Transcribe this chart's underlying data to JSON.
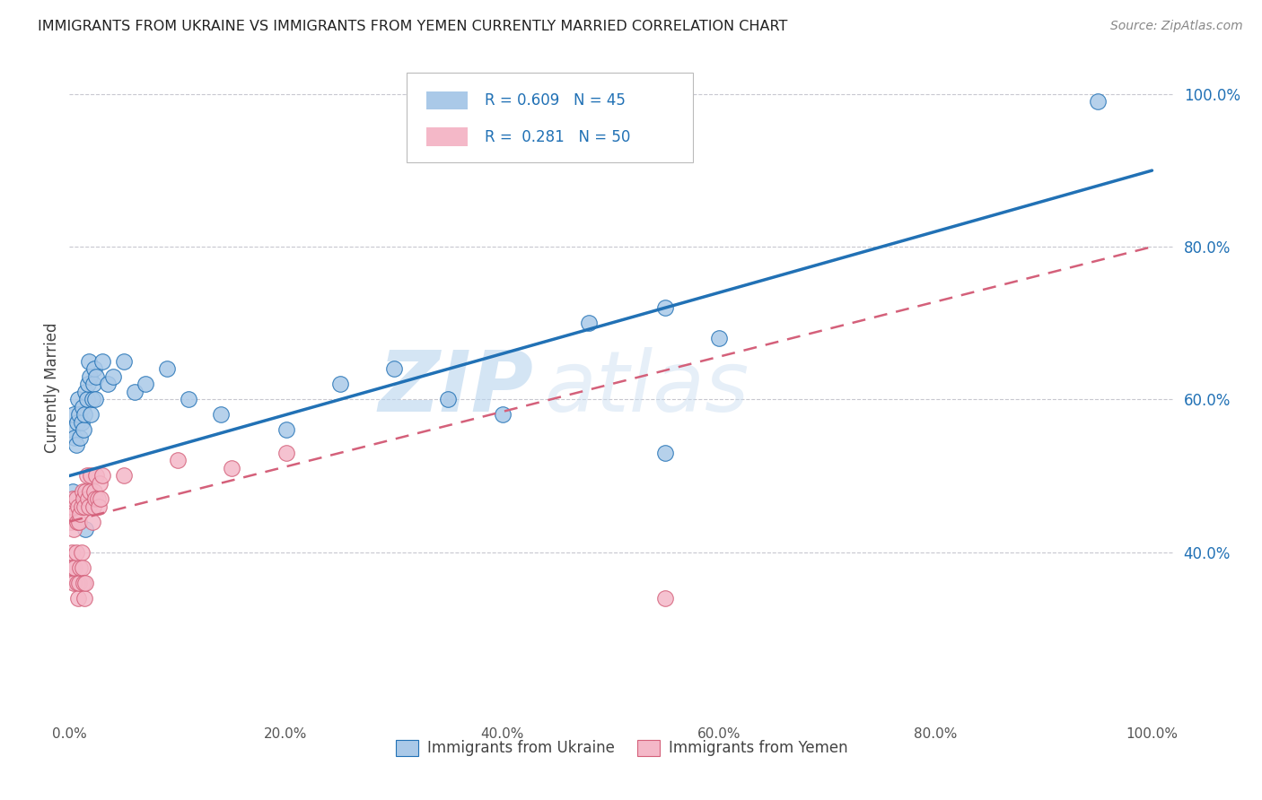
{
  "title": "IMMIGRANTS FROM UKRAINE VS IMMIGRANTS FROM YEMEN CURRENTLY MARRIED CORRELATION CHART",
  "source": "Source: ZipAtlas.com",
  "ylabel": "Currently Married",
  "watermark": "ZIPatlas",
  "ukraine_R": 0.609,
  "ukraine_N": 45,
  "yemen_R": 0.281,
  "yemen_N": 50,
  "ukraine_color": "#aac9e8",
  "yemen_color": "#f4b8c8",
  "ukraine_line_color": "#2171b5",
  "yemen_line_color": "#d4607a",
  "background_color": "#ffffff",
  "grid_color": "#c8c8d0",
  "ukraine_line_x0": 0.0,
  "ukraine_line_y0": 0.5,
  "ukraine_line_x1": 1.0,
  "ukraine_line_y1": 0.9,
  "yemen_line_x0": 0.0,
  "yemen_line_y0": 0.44,
  "yemen_line_x1": 1.0,
  "yemen_line_y1": 0.8,
  "ukraine_x": [
    0.002,
    0.004,
    0.005,
    0.006,
    0.007,
    0.008,
    0.009,
    0.01,
    0.011,
    0.012,
    0.013,
    0.014,
    0.015,
    0.016,
    0.017,
    0.018,
    0.019,
    0.02,
    0.021,
    0.022,
    0.023,
    0.024,
    0.025,
    0.03,
    0.035,
    0.04,
    0.05,
    0.06,
    0.07,
    0.09,
    0.11,
    0.14,
    0.2,
    0.25,
    0.3,
    0.35,
    0.4,
    0.48,
    0.55,
    0.6,
    0.003,
    0.008,
    0.015,
    0.95,
    0.55
  ],
  "ukraine_y": [
    0.56,
    0.58,
    0.55,
    0.54,
    0.57,
    0.6,
    0.58,
    0.55,
    0.57,
    0.59,
    0.56,
    0.58,
    0.61,
    0.6,
    0.62,
    0.65,
    0.63,
    0.58,
    0.6,
    0.62,
    0.64,
    0.6,
    0.63,
    0.65,
    0.62,
    0.63,
    0.65,
    0.61,
    0.62,
    0.64,
    0.6,
    0.58,
    0.56,
    0.62,
    0.64,
    0.6,
    0.58,
    0.7,
    0.72,
    0.68,
    0.48,
    0.44,
    0.43,
    0.99,
    0.53
  ],
  "yemen_x": [
    0.001,
    0.002,
    0.003,
    0.004,
    0.005,
    0.006,
    0.007,
    0.008,
    0.009,
    0.01,
    0.011,
    0.012,
    0.013,
    0.014,
    0.015,
    0.016,
    0.017,
    0.018,
    0.019,
    0.02,
    0.021,
    0.022,
    0.023,
    0.024,
    0.025,
    0.026,
    0.027,
    0.028,
    0.029,
    0.03,
    0.001,
    0.002,
    0.003,
    0.004,
    0.005,
    0.006,
    0.007,
    0.008,
    0.009,
    0.01,
    0.011,
    0.012,
    0.013,
    0.014,
    0.015,
    0.05,
    0.1,
    0.15,
    0.2,
    0.55
  ],
  "yemen_y": [
    0.44,
    0.46,
    0.47,
    0.43,
    0.45,
    0.47,
    0.44,
    0.46,
    0.44,
    0.45,
    0.46,
    0.48,
    0.47,
    0.46,
    0.48,
    0.5,
    0.47,
    0.46,
    0.48,
    0.5,
    0.44,
    0.46,
    0.48,
    0.47,
    0.5,
    0.47,
    0.46,
    0.49,
    0.47,
    0.5,
    0.38,
    0.4,
    0.38,
    0.36,
    0.38,
    0.4,
    0.36,
    0.34,
    0.36,
    0.38,
    0.4,
    0.38,
    0.36,
    0.34,
    0.36,
    0.5,
    0.52,
    0.51,
    0.53,
    0.34
  ],
  "xtick_values": [
    0.0,
    0.2,
    0.4,
    0.6,
    0.8,
    1.0
  ],
  "xtick_labels": [
    "0.0%",
    "20.0%",
    "40.0%",
    "60.0%",
    "80.0%",
    "100.0%"
  ],
  "right_ytick_values": [
    0.4,
    0.6,
    0.8,
    1.0
  ],
  "right_ytick_labels": [
    "40.0%",
    "60.0%",
    "80.0%",
    "100.0%"
  ],
  "ylim": [
    0.18,
    1.05
  ],
  "xlim": [
    0.0,
    1.02
  ]
}
